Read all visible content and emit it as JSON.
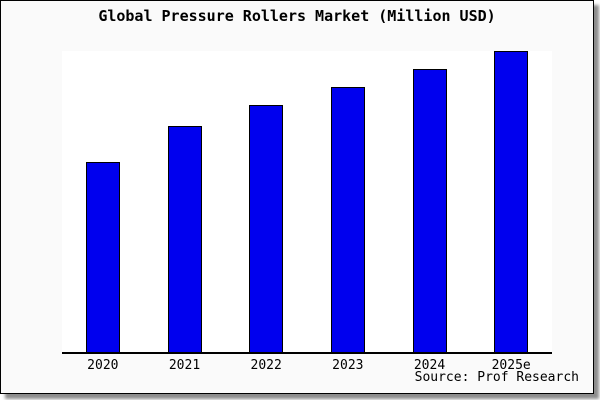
{
  "chart_data": {
    "type": "bar",
    "title": "Global Pressure Rollers Market (Million USD)",
    "categories": [
      "2020",
      "2021",
      "2022",
      "2023",
      "2024",
      "2025e"
    ],
    "values": [
      63,
      75,
      82,
      88,
      94,
      100
    ],
    "value_note": "no y-axis tick labels visible; values are relative estimates with 2025e = 100",
    "xlabel": "",
    "ylabel": "",
    "ylim": [
      0,
      100
    ],
    "grid": false,
    "legend": false,
    "bar_color": "#0000ee",
    "bar_border_color": "#000000",
    "plot_background": "#ffffff",
    "figure_background": "#fafafa",
    "axis_color": "#000000"
  },
  "source_text": "Source: Prof Research"
}
